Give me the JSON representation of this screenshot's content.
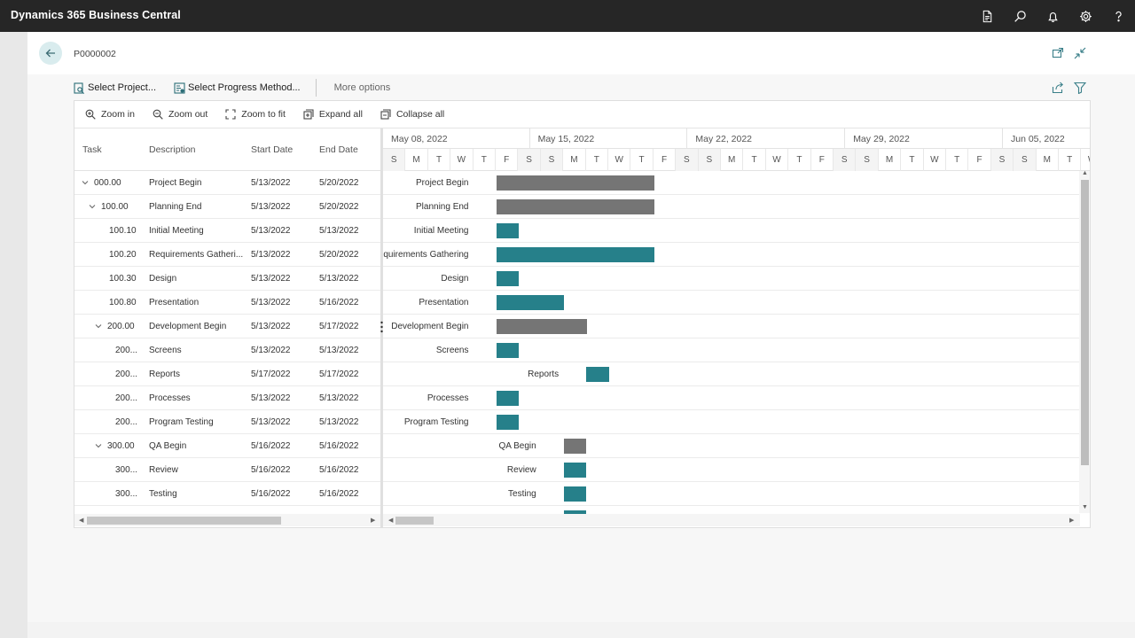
{
  "app": {
    "title": "Dynamics 365 Business Central"
  },
  "record": {
    "title": "P0000002"
  },
  "actions": {
    "select_project": "Select Project...",
    "select_progress": "Select Progress Method...",
    "more_options": "More options"
  },
  "gantt_toolbar": {
    "zoom_in": "Zoom in",
    "zoom_out": "Zoom out",
    "zoom_fit": "Zoom to fit",
    "expand_all": "Expand all",
    "collapse_all": "Collapse all"
  },
  "grid": {
    "headers": {
      "task": "Task",
      "description": "Description",
      "start": "Start Date",
      "end": "End Date"
    }
  },
  "rows": [
    {
      "task": "000.00",
      "description": "Project Begin",
      "start": "5/13/2022",
      "end": "5/20/2022",
      "chart_label": "Project Begin"
    },
    {
      "task": "100.00",
      "description": "Planning End",
      "start": "5/13/2022",
      "end": "5/20/2022",
      "chart_label": "Planning End"
    },
    {
      "task": "100.10",
      "description": "Initial Meeting",
      "start": "5/13/2022",
      "end": "5/13/2022",
      "chart_label": "Initial Meeting"
    },
    {
      "task": "100.20",
      "description": "Requirements Gatheri...",
      "start": "5/13/2022",
      "end": "5/20/2022",
      "chart_label": "Requirements Gathering"
    },
    {
      "task": "100.30",
      "description": "Design",
      "start": "5/13/2022",
      "end": "5/13/2022",
      "chart_label": "Design"
    },
    {
      "task": "100.80",
      "description": "Presentation",
      "start": "5/13/2022",
      "end": "5/16/2022",
      "chart_label": "Presentation"
    },
    {
      "task": "200.00",
      "description": "Development Begin",
      "start": "5/13/2022",
      "end": "5/17/2022",
      "chart_label": "Development Begin"
    },
    {
      "task": "200...",
      "description": "Screens",
      "start": "5/13/2022",
      "end": "5/13/2022",
      "chart_label": "Screens"
    },
    {
      "task": "200...",
      "description": "Reports",
      "start": "5/17/2022",
      "end": "5/17/2022",
      "chart_label": "Reports"
    },
    {
      "task": "200...",
      "description": "Processes",
      "start": "5/13/2022",
      "end": "5/13/2022",
      "chart_label": "Processes"
    },
    {
      "task": "200...",
      "description": "Program Testing",
      "start": "5/13/2022",
      "end": "5/13/2022",
      "chart_label": "Program Testing"
    },
    {
      "task": "300.00",
      "description": "QA Begin",
      "start": "5/16/2022",
      "end": "5/16/2022",
      "chart_label": "QA Begin"
    },
    {
      "task": "300...",
      "description": "Review",
      "start": "5/16/2022",
      "end": "5/16/2022",
      "chart_label": "Review"
    },
    {
      "task": "300...",
      "description": "Testing",
      "start": "5/16/2022",
      "end": "5/16/2022",
      "chart_label": "Testing"
    }
  ],
  "timeline": {
    "weeks": [
      "May 08, 2022",
      "May 15, 2022",
      "May 22, 2022",
      "May 29, 2022",
      "Jun 05, 2022"
    ],
    "days": [
      "S",
      "M",
      "T",
      "W",
      "T",
      "F",
      "S",
      "S",
      "M",
      "T",
      "W",
      "T",
      "F",
      "S",
      "S",
      "M",
      "T",
      "W",
      "T",
      "F",
      "S",
      "S",
      "M",
      "T",
      "W",
      "T",
      "F",
      "S",
      "S",
      "M",
      "T",
      "W"
    ]
  },
  "colors": {
    "summary_bar": "#757575",
    "task_bar": "#26808a",
    "accent": "#008489"
  }
}
